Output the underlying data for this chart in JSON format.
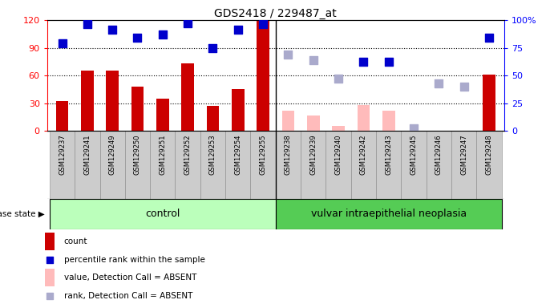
{
  "title": "GDS2418 / 229487_at",
  "samples": [
    "GSM129237",
    "GSM129241",
    "GSM129249",
    "GSM129250",
    "GSM129251",
    "GSM129252",
    "GSM129253",
    "GSM129254",
    "GSM129255",
    "GSM129238",
    "GSM129239",
    "GSM129240",
    "GSM129242",
    "GSM129243",
    "GSM129245",
    "GSM129246",
    "GSM129247",
    "GSM129248"
  ],
  "count_present": [
    32,
    65,
    65,
    48,
    35,
    73,
    27,
    45,
    120,
    null,
    null,
    null,
    null,
    null,
    null,
    null,
    null,
    61
  ],
  "count_absent": [
    null,
    null,
    null,
    null,
    null,
    null,
    null,
    null,
    null,
    22,
    17,
    5,
    28,
    22,
    null,
    null,
    null,
    null
  ],
  "rank_present": [
    79,
    96,
    91,
    84,
    87,
    97,
    75,
    91,
    96,
    null,
    null,
    null,
    62,
    62,
    null,
    null,
    null,
    84
  ],
  "rank_absent": [
    null,
    null,
    null,
    null,
    null,
    null,
    null,
    null,
    null,
    69,
    64,
    47,
    null,
    null,
    2,
    43,
    40,
    null
  ],
  "n_control": 9,
  "n_neoplasia": 9,
  "separator_after_index": 8,
  "ylim_left": [
    0,
    120
  ],
  "ylim_right": [
    0,
    100
  ],
  "yticks_left": [
    0,
    30,
    60,
    90,
    120
  ],
  "ytick_labels_left": [
    "0",
    "30",
    "60",
    "90",
    "120"
  ],
  "yticks_right": [
    0,
    25,
    50,
    75,
    100
  ],
  "ytick_labels_right": [
    "0",
    "25",
    "50",
    "75",
    "100%"
  ],
  "grid_yticks": [
    30,
    60,
    90
  ],
  "bar_color_present": "#cc0000",
  "bar_color_absent": "#ffbbbb",
  "dot_color_present": "#0000cc",
  "dot_color_absent": "#aaaacc",
  "control_color": "#bbffbb",
  "neoplasia_color": "#55cc55",
  "group_label_control": "control",
  "group_label_neoplasia": "vulvar intraepithelial neoplasia",
  "disease_state_label": "disease state",
  "legend_items": [
    {
      "color": "#cc0000",
      "shape": "rect",
      "label": "count"
    },
    {
      "color": "#0000cc",
      "shape": "square",
      "label": "percentile rank within the sample"
    },
    {
      "color": "#ffbbbb",
      "shape": "rect",
      "label": "value, Detection Call = ABSENT"
    },
    {
      "color": "#aaaacc",
      "shape": "square",
      "label": "rank, Detection Call = ABSENT"
    }
  ],
  "bar_width": 0.5,
  "dot_size": 45
}
